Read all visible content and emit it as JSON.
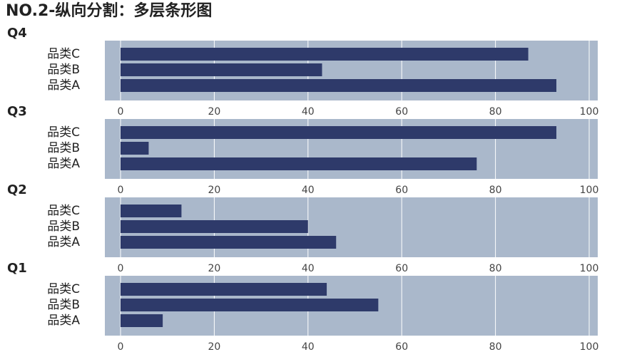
{
  "title": "NO.2-纵向分割：多层条形图",
  "chart_data": [
    {
      "type": "bar",
      "orientation": "horizontal",
      "title": "Q4",
      "categories": [
        "品类A",
        "品类B",
        "品类C"
      ],
      "values": [
        93,
        43,
        87
      ],
      "color": "#2e3a6a",
      "background": "#aab8cb",
      "xlim": [
        0,
        100
      ],
      "xticks": [
        0,
        20,
        40,
        60,
        80,
        100
      ],
      "grid": true
    },
    {
      "type": "bar",
      "orientation": "horizontal",
      "title": "Q3",
      "categories": [
        "品类A",
        "品类B",
        "品类C"
      ],
      "values": [
        76,
        6,
        93
      ],
      "color": "#2e3a6a",
      "background": "#aab8cb",
      "xlim": [
        0,
        100
      ],
      "xticks": [
        0,
        20,
        40,
        60,
        80,
        100
      ],
      "grid": true
    },
    {
      "type": "bar",
      "orientation": "horizontal",
      "title": "Q2",
      "categories": [
        "品类A",
        "品类B",
        "品类C"
      ],
      "values": [
        46,
        40,
        13
      ],
      "color": "#2e3a6a",
      "background": "#aab8cb",
      "xlim": [
        0,
        100
      ],
      "xticks": [
        0,
        20,
        40,
        60,
        80,
        100
      ],
      "grid": true
    },
    {
      "type": "bar",
      "orientation": "horizontal",
      "title": "Q1",
      "categories": [
        "品类A",
        "品类B",
        "品类C"
      ],
      "values": [
        9,
        55,
        44
      ],
      "color": "#2e3a6a",
      "background": "#aab8cb",
      "xlim": [
        0,
        100
      ],
      "xticks": [
        0,
        20,
        40,
        60,
        80,
        100
      ],
      "grid": true
    }
  ]
}
